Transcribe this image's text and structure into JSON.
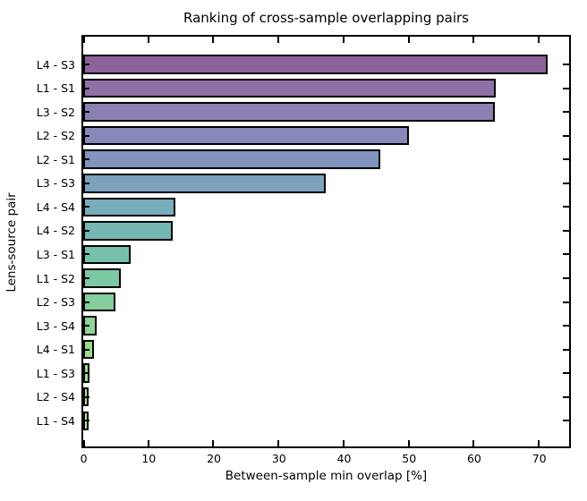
{
  "chart_data": {
    "type": "bar",
    "orientation": "horizontal",
    "title": "Ranking of cross-sample overlapping pairs",
    "xlabel": "Between-sample min overlap [%]",
    "ylabel": "Lens-source pair",
    "categories": [
      "L4 - S3",
      "L1 - S1",
      "L3 - S2",
      "L2 - S2",
      "L2 - S1",
      "L3 - S3",
      "L4 - S4",
      "L4 - S2",
      "L3 - S1",
      "L1 - S2",
      "L2 - S3",
      "L3 - S4",
      "L4 - S1",
      "L1 - S3",
      "L2 - S4",
      "L1 - S4"
    ],
    "values": [
      71.4,
      63.4,
      63.2,
      50.0,
      45.7,
      37.2,
      14.1,
      13.8,
      7.3,
      5.8,
      4.9,
      2.1,
      1.7,
      0.9,
      0.8,
      0.4
    ],
    "bar_colors": [
      "#8c6399",
      "#9070a7",
      "#8c7fb2",
      "#8889ba",
      "#8194bd",
      "#7ca2bc",
      "#78adbb",
      "#75b7b4",
      "#75c1ae",
      "#7cc8a5",
      "#85ce9c",
      "#8ed497",
      "#9bd98f",
      "#a5de8b",
      "#afe287",
      "#bae683"
    ],
    "bar_edge_color": "#000000",
    "axis_color": "#000000",
    "xlim": [
      0,
      74.5
    ],
    "xticks": [
      0,
      10,
      20,
      30,
      40,
      50,
      60,
      70
    ],
    "grid": false,
    "tick_direction": "in"
  }
}
